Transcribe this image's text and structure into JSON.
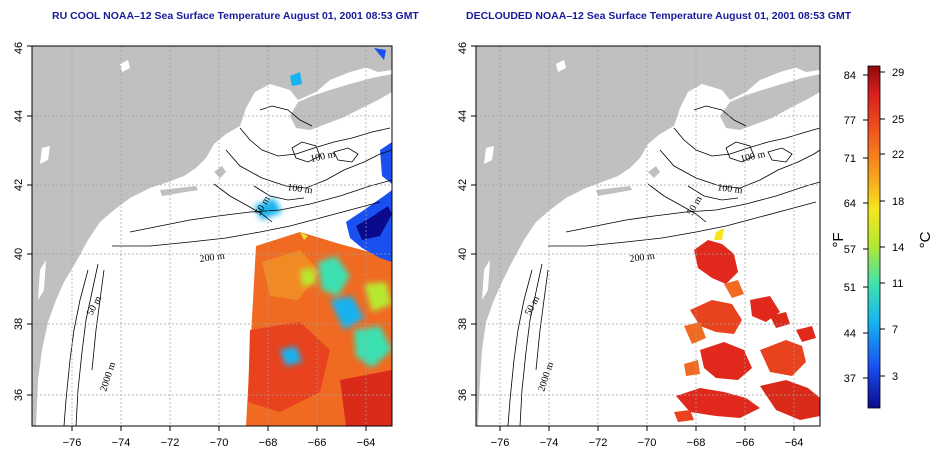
{
  "titles": {
    "left": "RU COOL NOAA–12 Sea Surface Temperature August 01, 2001 08:53 GMT",
    "right": "DECLOUDED NOAA–12 Sea Surface Temperature August 01, 2001 08:53 GMT"
  },
  "axes": {
    "lon_ticks": [
      "−76",
      "−74",
      "−72",
      "−70",
      "−68",
      "−66",
      "−64"
    ],
    "lat_ticks": [
      "36",
      "38",
      "40",
      "42",
      "44",
      "46"
    ]
  },
  "contour_labels": {
    "left": [
      "100 m",
      "100 m",
      "50 m",
      "200 m",
      "50 m",
      "2000 m"
    ],
    "right": [
      "100 m",
      "100 m",
      "50 m",
      "200 m",
      "50 m",
      "2000 m"
    ]
  },
  "colorbar": {
    "fahrenheit_ticks": [
      "84",
      "77",
      "71",
      "64",
      "57",
      "51",
      "44",
      "37"
    ],
    "celsius_ticks": [
      "29",
      "25",
      "22",
      "18",
      "14",
      "11",
      "7",
      "3"
    ],
    "f_unit": "°F",
    "c_unit": "°C",
    "colors": [
      "#0a0a8c",
      "#1a4ff0",
      "#17b3f0",
      "#3ee0b0",
      "#b8e830",
      "#f5e61e",
      "#f7a21e",
      "#f25a1e",
      "#d91f1f",
      "#8c0a0a"
    ]
  },
  "colors": {
    "land": "#c0c0c0",
    "ocean": "#ffffff",
    "grid": "#a0a0a0",
    "title": "#1a1a9c"
  }
}
